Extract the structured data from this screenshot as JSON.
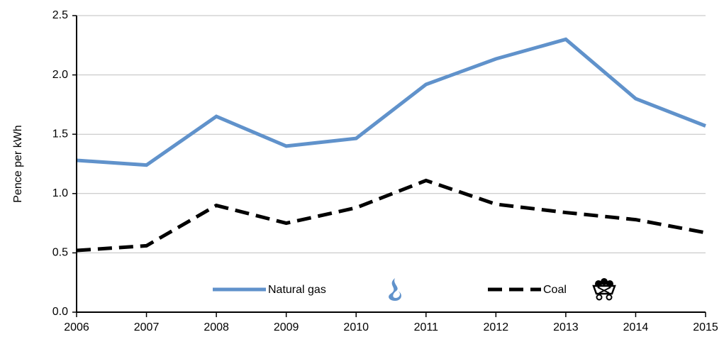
{
  "chart_data": {
    "type": "line",
    "ylabel": "Pence per kWh",
    "x": [
      2006,
      2007,
      2008,
      2009,
      2010,
      2011,
      2012,
      2013,
      2014,
      2015
    ],
    "xlim": [
      2006,
      2015
    ],
    "xticks": [
      2006,
      2007,
      2008,
      2009,
      2010,
      2011,
      2012,
      2013,
      2014,
      2015
    ],
    "ylim": [
      0,
      2.5
    ],
    "yticks": [
      {
        "value": 0,
        "label": "0.0"
      },
      0.5,
      {
        "value": 1,
        "label": "1.0"
      },
      1.5,
      {
        "value": 2,
        "label": "2.0"
      },
      2.5
    ],
    "grid": true,
    "legend": "bottom",
    "series": [
      {
        "name": "Natural gas",
        "color": "#6092cb",
        "style": "solid",
        "values": [
          1.28,
          1.24,
          1.65,
          1.4,
          1.465,
          1.92,
          2.135,
          2.3,
          1.8,
          1.57
        ]
      },
      {
        "name": "Coal",
        "color": "#000000",
        "style": "dashed",
        "values": [
          0.52,
          0.56,
          0.9,
          0.75,
          0.88,
          1.11,
          0.91,
          0.84,
          0.78,
          0.67
        ]
      }
    ]
  }
}
